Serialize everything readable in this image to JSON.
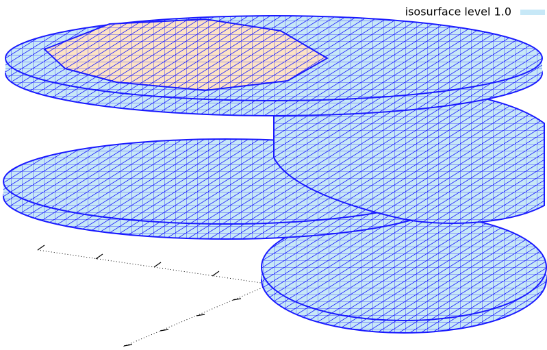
{
  "chart_data": {
    "type": "isosurface",
    "series": [
      {
        "name": "isosurface level 1.0",
        "color": "#c7e8f7"
      }
    ],
    "edge_color": "#1a1aff",
    "cap_color": "#fde3c5"
  }
}
